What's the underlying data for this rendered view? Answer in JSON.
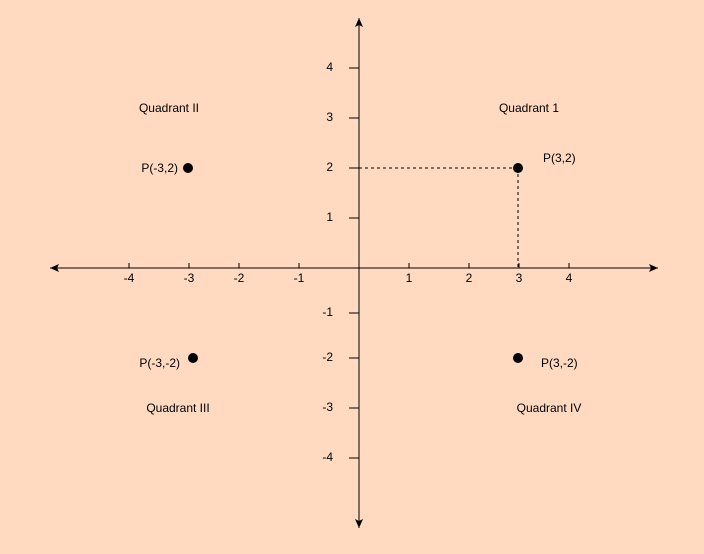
{
  "x_axis": {
    "ticks": [
      -4,
      -3,
      -2,
      -1,
      1,
      2,
      3,
      4
    ]
  },
  "y_axis": {
    "ticks": [
      4,
      3,
      2,
      1,
      -1,
      -2,
      -3,
      -4
    ]
  },
  "quadrants": [
    "Quadrant 1",
    "Quadrant II",
    "Quadrant III",
    "Quadrant IV"
  ],
  "points": [
    "P(3,2)",
    "P(-3,2)",
    "P(-3,-2)",
    "P(3,-2)"
  ]
}
